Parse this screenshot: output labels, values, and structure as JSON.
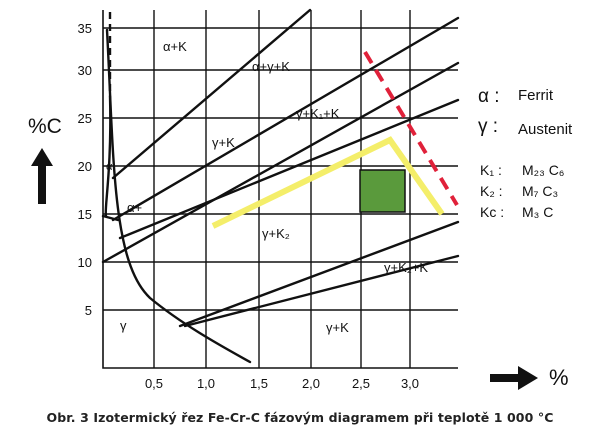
{
  "axes": {
    "y_ticks": [
      "35",
      "30",
      "25",
      "20",
      "15",
      "10",
      "5"
    ],
    "x_ticks": [
      "0,5",
      "1,0",
      "1,5",
      "2,0",
      "2,5",
      "3,0"
    ],
    "y_axis_label": "%C",
    "x_axis_label": "%"
  },
  "region_labels": {
    "alpha_k": "α+K",
    "alpha_gamma_k": "α+γ+K",
    "gamma_k1_k": "γ+K₁+K",
    "gamma_k_left": "γ+K",
    "gamma_k2": "γ+K₂",
    "gamma_k2_k": "γ+K₂+K",
    "gamma_k_bottom": "γ+K",
    "gamma": "γ",
    "alpha": "α",
    "alpha_plus": "α+"
  },
  "legend": {
    "alpha_symbol": "α :",
    "alpha_name": "Ferrit",
    "gamma_symbol": "γ :",
    "gamma_name": "Austenit",
    "k1_symbol": "K₁ :",
    "k1_formula": "M₂₃ C₆",
    "k2_symbol": "K₂ :",
    "k2_formula": "M₇ C₃",
    "kc_symbol": "Kc :",
    "kc_formula": "M₃ C"
  },
  "colors": {
    "yellow_path": "#f4ee6a",
    "red_dashed": "#e0213a",
    "green_box": "#5a9a3c",
    "lines": "#111111"
  },
  "caption": "Obr. 3 Izotermický řez Fe-Cr-C fázovým diagramem při teplotě 1 000 °C"
}
